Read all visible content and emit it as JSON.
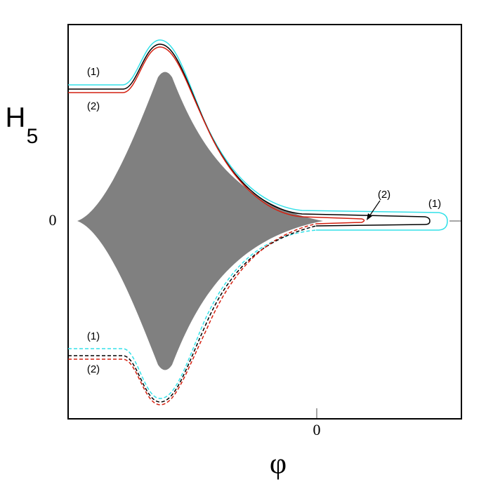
{
  "axes": {
    "y_label": "H",
    "y_label_subscript": "5",
    "x_label": "φ",
    "x_zero": "0",
    "y_zero": "0"
  },
  "annotations": {
    "upper_left": [
      "(1)",
      "(2)"
    ],
    "lower_left": [
      "(1)",
      "(2)"
    ],
    "right": [
      "(2)",
      "(1)"
    ]
  }
}
